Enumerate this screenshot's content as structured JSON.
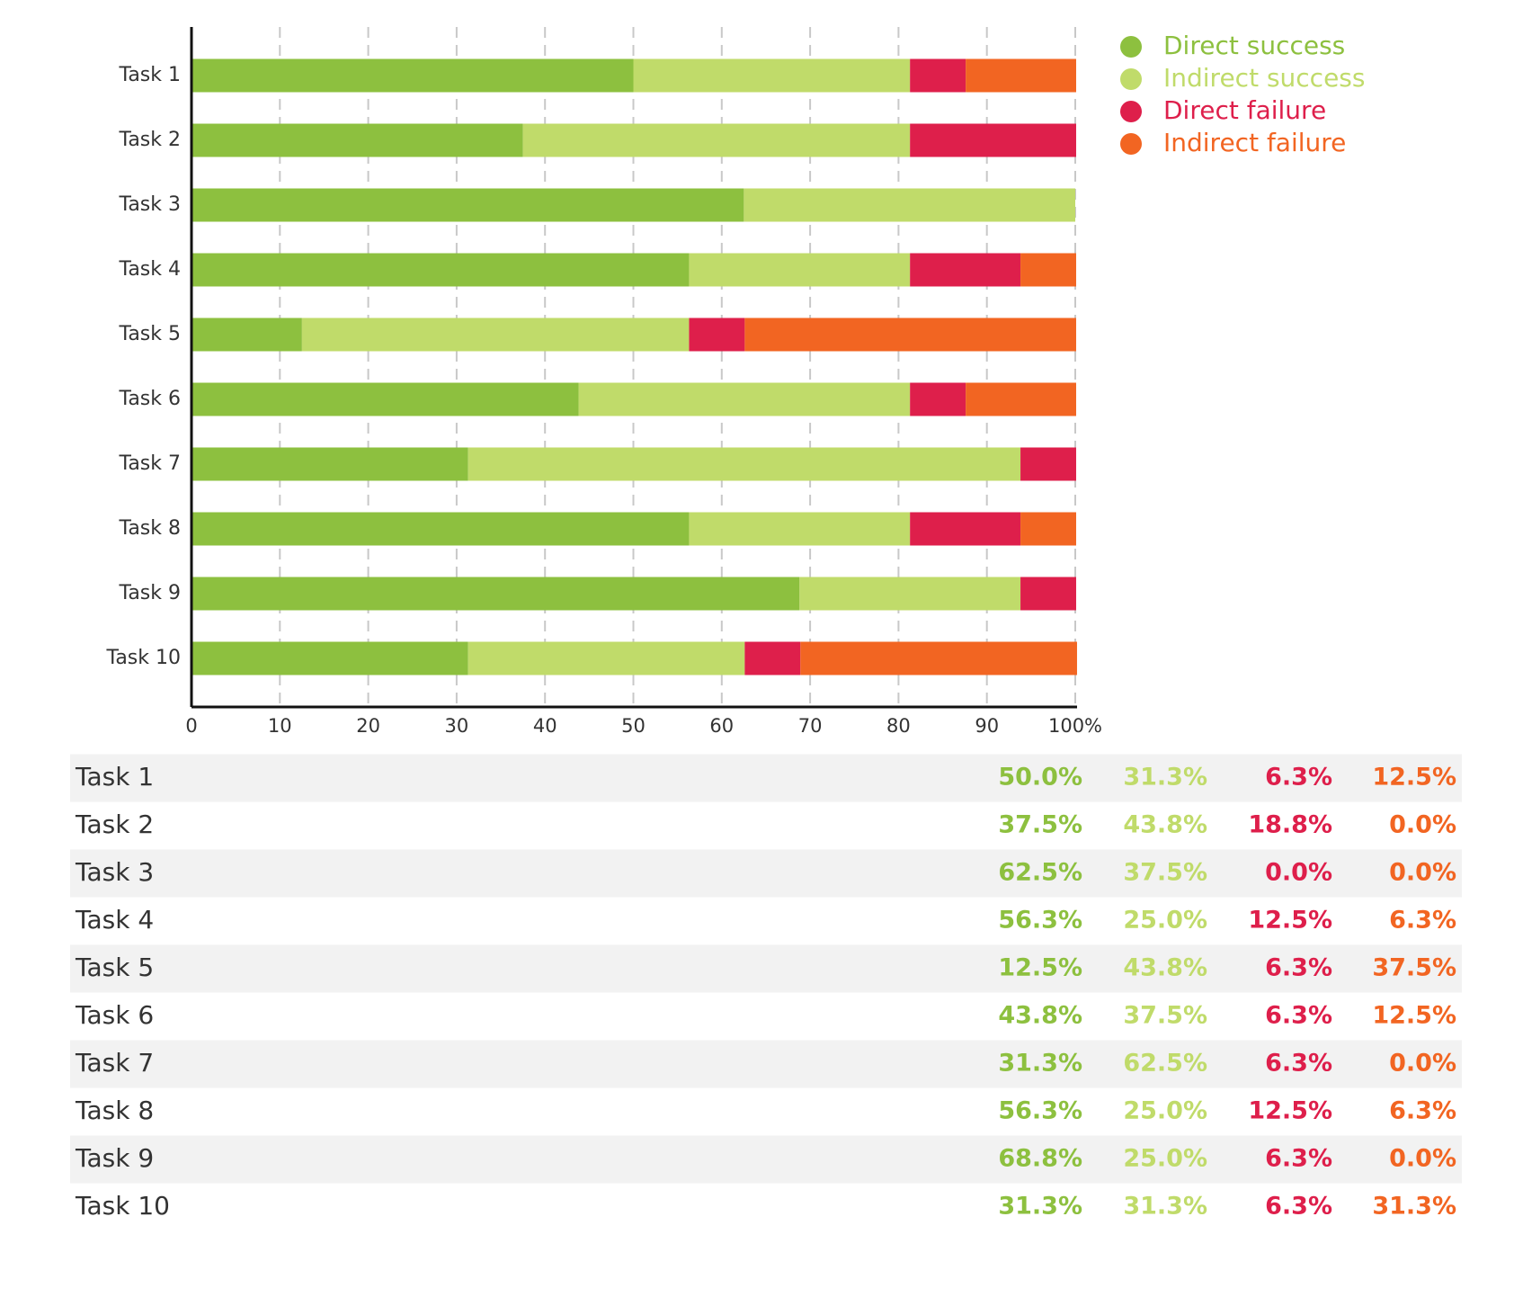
{
  "chart_data": {
    "type": "stacked-bar",
    "orientation": "horizontal",
    "categories": [
      "Task 1",
      "Task 2",
      "Task 3",
      "Task 4",
      "Task 5",
      "Task 6",
      "Task 7",
      "Task 8",
      "Task 9",
      "Task 10"
    ],
    "series": [
      {
        "name": "Direct success",
        "color": "#8dc03f",
        "values": [
          50.0,
          37.5,
          62.5,
          56.3,
          12.5,
          43.8,
          31.3,
          56.3,
          68.8,
          31.3
        ],
        "value_labels": [
          "50.0%",
          "37.5%",
          "62.5%",
          "56.3%",
          "12.5%",
          "43.8%",
          "31.3%",
          "56.3%",
          "68.8%",
          "31.3%"
        ]
      },
      {
        "name": "Indirect success",
        "color": "#c0db6a",
        "values": [
          31.3,
          43.8,
          37.5,
          25.0,
          43.8,
          37.5,
          62.5,
          25.0,
          25.0,
          31.3
        ],
        "value_labels": [
          "31.3%",
          "43.8%",
          "37.5%",
          "25.0%",
          "43.8%",
          "37.5%",
          "62.5%",
          "25.0%",
          "25.0%",
          "31.3%"
        ]
      },
      {
        "name": "Direct failure",
        "color": "#de1f4b",
        "values": [
          6.3,
          18.8,
          0.0,
          12.5,
          6.3,
          6.3,
          6.3,
          12.5,
          6.3,
          6.3
        ],
        "value_labels": [
          "6.3%",
          "18.8%",
          "0.0%",
          "12.5%",
          "6.3%",
          "6.3%",
          "6.3%",
          "12.5%",
          "6.3%",
          "6.3%"
        ]
      },
      {
        "name": "Indirect failure",
        "color": "#f26522",
        "values": [
          12.5,
          0.0,
          0.0,
          6.3,
          37.5,
          12.5,
          0.0,
          6.3,
          0.0,
          31.3
        ],
        "value_labels": [
          "12.5%",
          "0.0%",
          "0.0%",
          "6.3%",
          "37.5%",
          "12.5%",
          "0.0%",
          "6.3%",
          "0.0%",
          "31.3%"
        ]
      }
    ],
    "xlim": [
      0,
      100
    ],
    "xticks": [
      0,
      10,
      20,
      30,
      40,
      50,
      60,
      70,
      80,
      90,
      {
        "value": 100,
        "label": "100%"
      }
    ],
    "grid": true,
    "legend": "right"
  }
}
